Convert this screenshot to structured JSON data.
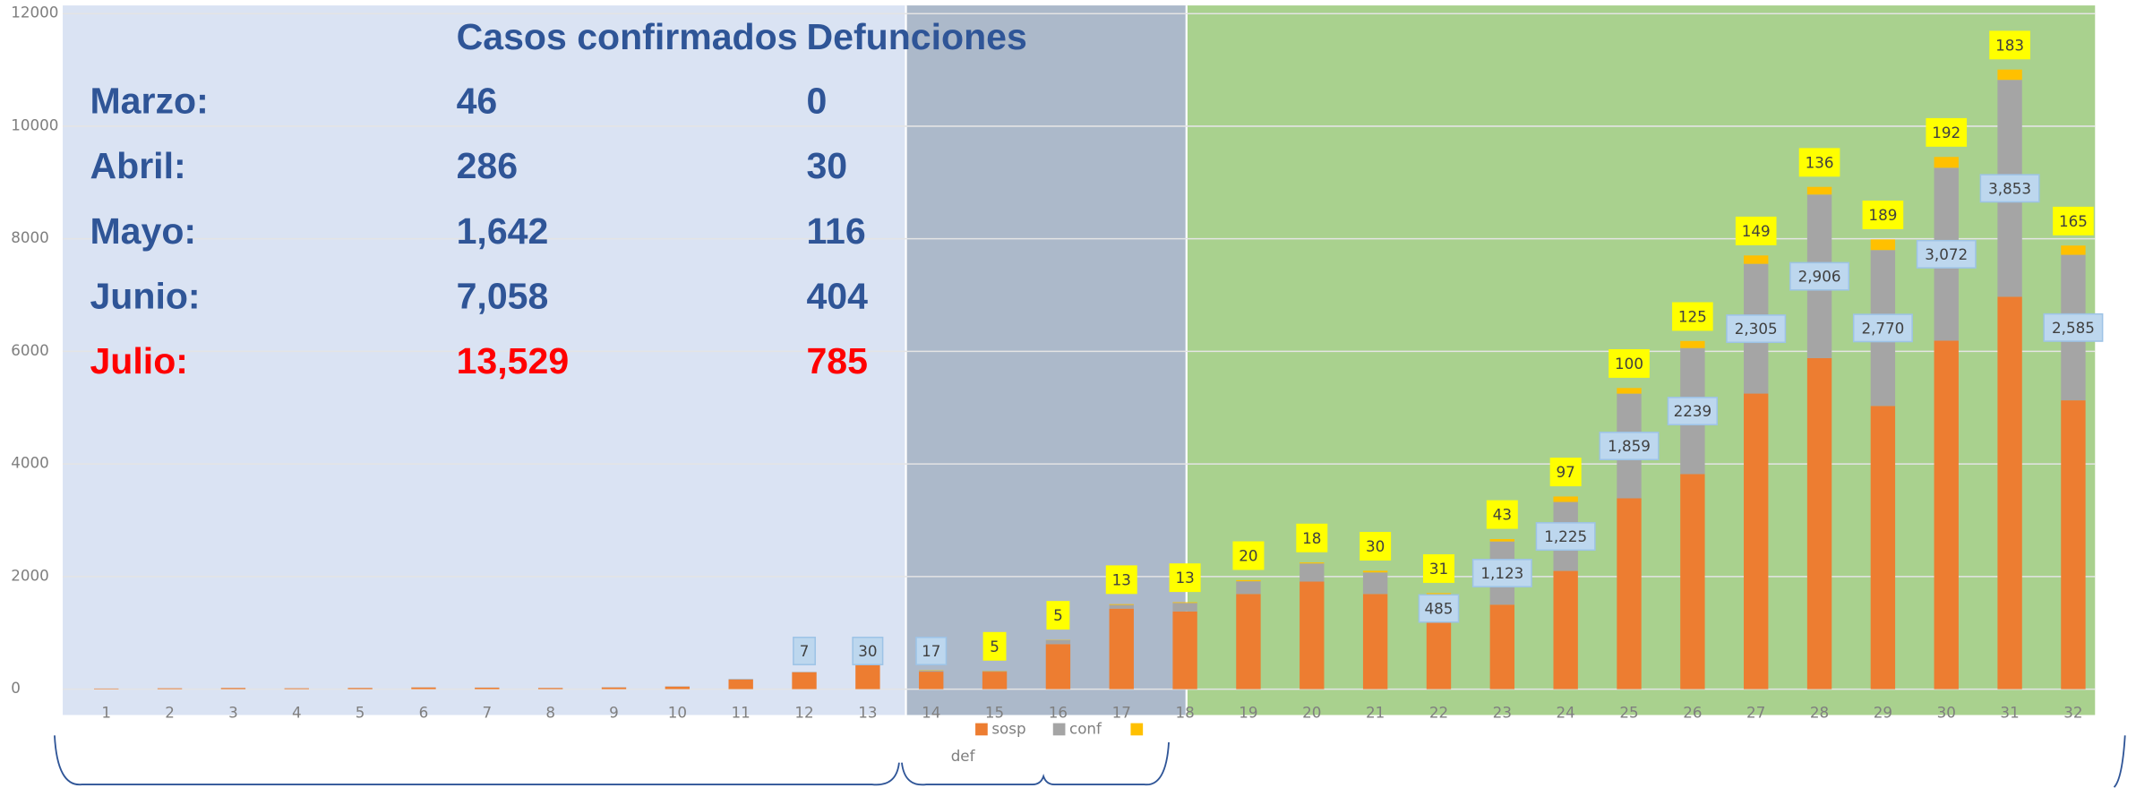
{
  "chart_data": {
    "type": "stacked_bar",
    "categories": [
      "1",
      "2",
      "3",
      "4",
      "5",
      "6",
      "7",
      "8",
      "9",
      "10",
      "11",
      "12",
      "13",
      "14",
      "15",
      "16",
      "17",
      "18",
      "19",
      "20",
      "21",
      "22",
      "23",
      "24",
      "25",
      "26",
      "27",
      "28",
      "29",
      "30",
      "31",
      "32"
    ],
    "series": [
      {
        "name": "sosp",
        "color": "#ed7d31",
        "values": [
          10,
          15,
          20,
          15,
          20,
          30,
          25,
          20,
          30,
          45,
          170,
          300,
          430,
          310,
          310,
          800,
          1430,
          1380,
          1690,
          1910,
          1690,
          1190,
          1500,
          2100,
          3390,
          3820,
          5250,
          5880,
          5030,
          6190,
          6970,
          5130
        ]
      },
      {
        "name": "conf",
        "color": "#a5a5a5",
        "values": [
          1,
          1,
          2,
          1,
          2,
          3,
          3,
          2,
          4,
          5,
          10,
          7,
          30,
          17,
          10,
          71,
          66,
          151,
          226,
          322,
          383,
          485,
          1123,
          1225,
          1859,
          2239,
          2305,
          2906,
          2770,
          3072,
          3853,
          2585
        ],
        "value_labels": [
          null,
          null,
          null,
          null,
          null,
          null,
          null,
          null,
          null,
          null,
          null,
          "7",
          "30",
          "17",
          null,
          null,
          null,
          null,
          null,
          null,
          null,
          "485",
          "1,123",
          "1,225",
          "1,859",
          "2239",
          "2,305",
          "2,906",
          "2,770",
          "3,072",
          "3,853",
          "2,585"
        ]
      },
      {
        "name": "def",
        "color": "#ffc000",
        "values": [
          0,
          0,
          0,
          0,
          0,
          0,
          0,
          0,
          0,
          0,
          0,
          0,
          0,
          7,
          5,
          5,
          13,
          13,
          20,
          18,
          30,
          31,
          43,
          97,
          100,
          125,
          149,
          136,
          189,
          192,
          183,
          165
        ],
        "value_labels": [
          null,
          null,
          null,
          null,
          null,
          null,
          null,
          null,
          null,
          null,
          null,
          null,
          null,
          null,
          "5",
          "5",
          "13",
          "13",
          "20",
          "18",
          "30",
          "31",
          "43",
          "97",
          "100",
          "125",
          "149",
          "136",
          "189",
          "192",
          "183",
          "165"
        ]
      }
    ],
    "ylim": [
      0,
      12000
    ],
    "yticks": [
      0,
      2000,
      4000,
      6000,
      8000,
      10000,
      12000
    ],
    "grid": true
  },
  "table": {
    "header": [
      "Casos confirmados",
      "Defunciones"
    ],
    "rows": [
      [
        "Marzo:",
        "46",
        "0"
      ],
      [
        "Abril:",
        "286",
        "30"
      ],
      [
        "Mayo:",
        "1,642",
        "116"
      ],
      [
        "Junio:",
        "7,058",
        "404"
      ],
      [
        "Julio:",
        "13,529",
        "785"
      ]
    ],
    "text_color": "#2f5597",
    "highlight_row": 4,
    "highlight_color": "#ff0000"
  }
}
